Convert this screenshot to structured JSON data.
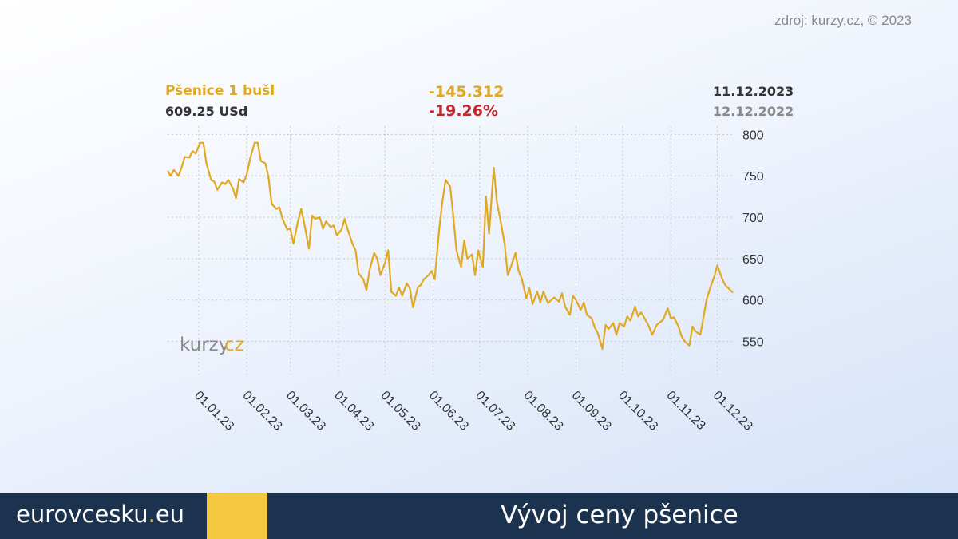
{
  "source_note": "zdroj: kurzy.cz, © 2023",
  "header": {
    "name": "Pšenice 1 bušl",
    "price": "609.25 USd",
    "change_abs": "-145.312",
    "change_pct": "-19.26%",
    "date_to": "11.12.2023",
    "date_from": "12.12.2022"
  },
  "watermark": {
    "part1": "kurzy",
    "part2": "cz"
  },
  "footer": {
    "site_name": "eurovcesku",
    "site_dot": ".",
    "site_tld": "eu",
    "title": "Vývoj ceny pšenice"
  },
  "colors": {
    "line": "#e0a823",
    "name": "#e0a823",
    "change_abs": "#e0a823",
    "change_pct": "#c0282a",
    "date_from": "#888888",
    "footer_bg": "#1c3350",
    "accent": "#f5c842"
  },
  "chart_data": {
    "type": "line",
    "title": "Pšenice 1 bušl",
    "xlabel": "",
    "ylabel": "",
    "x_range": [
      "2022-12-12",
      "2023-12-11"
    ],
    "ylim": [
      510,
      810
    ],
    "yticks": [
      550,
      600,
      650,
      700,
      750,
      800
    ],
    "ytick_labels": [
      "550",
      "600",
      "650",
      "700",
      "750",
      "800"
    ],
    "xticks": [
      "2023-01-01",
      "2023-02-01",
      "2023-03-01",
      "2023-04-01",
      "2023-05-01",
      "2023-06-01",
      "2023-07-01",
      "2023-08-01",
      "2023-09-01",
      "2023-10-01",
      "2023-11-01",
      "2023-12-01"
    ],
    "xtick_labels": [
      "01.01.23",
      "01.02.23",
      "01.03.23",
      "01.04.23",
      "01.05.23",
      "01.06.23",
      "01.07.23",
      "01.08.23",
      "01.09.23",
      "01.10.23",
      "01.11.23",
      "01.12.23"
    ],
    "grid": true,
    "y_axis_side": "right",
    "series": [
      {
        "name": "Pšenice 1 bušl",
        "points": [
          [
            "2022-12-12",
            756
          ],
          [
            "2022-12-14",
            750
          ],
          [
            "2022-12-16",
            757
          ],
          [
            "2022-12-19",
            750
          ],
          [
            "2022-12-21",
            760
          ],
          [
            "2022-12-23",
            773
          ],
          [
            "2022-12-26",
            772
          ],
          [
            "2022-12-28",
            780
          ],
          [
            "2022-12-30",
            777
          ],
          [
            "2023-01-02",
            790
          ],
          [
            "2023-01-04",
            790
          ],
          [
            "2023-01-06",
            765
          ],
          [
            "2023-01-09",
            745
          ],
          [
            "2023-01-11",
            743
          ],
          [
            "2023-01-13",
            733
          ],
          [
            "2023-01-16",
            742
          ],
          [
            "2023-01-18",
            740
          ],
          [
            "2023-01-20",
            745
          ],
          [
            "2023-01-23",
            735
          ],
          [
            "2023-01-25",
            723
          ],
          [
            "2023-01-27",
            746
          ],
          [
            "2023-01-30",
            742
          ],
          [
            "2023-02-01",
            752
          ],
          [
            "2023-02-03",
            770
          ],
          [
            "2023-02-06",
            790
          ],
          [
            "2023-02-08",
            790
          ],
          [
            "2023-02-10",
            768
          ],
          [
            "2023-02-13",
            765
          ],
          [
            "2023-02-15",
            748
          ],
          [
            "2023-02-17",
            716
          ],
          [
            "2023-02-20",
            710
          ],
          [
            "2023-02-22",
            712
          ],
          [
            "2023-02-24",
            698
          ],
          [
            "2023-02-27",
            685
          ],
          [
            "2023-03-01",
            686
          ],
          [
            "2023-03-03",
            668
          ],
          [
            "2023-03-06",
            696
          ],
          [
            "2023-03-08",
            710
          ],
          [
            "2023-03-10",
            692
          ],
          [
            "2023-03-13",
            662
          ],
          [
            "2023-03-15",
            702
          ],
          [
            "2023-03-17",
            698
          ],
          [
            "2023-03-20",
            700
          ],
          [
            "2023-03-22",
            686
          ],
          [
            "2023-03-24",
            695
          ],
          [
            "2023-03-27",
            688
          ],
          [
            "2023-03-29",
            690
          ],
          [
            "2023-03-31",
            678
          ],
          [
            "2023-04-03",
            685
          ],
          [
            "2023-04-05",
            698
          ],
          [
            "2023-04-07",
            685
          ],
          [
            "2023-04-10",
            668
          ],
          [
            "2023-04-12",
            660
          ],
          [
            "2023-04-14",
            632
          ],
          [
            "2023-04-17",
            625
          ],
          [
            "2023-04-19",
            612
          ],
          [
            "2023-04-21",
            636
          ],
          [
            "2023-04-24",
            657
          ],
          [
            "2023-04-26",
            650
          ],
          [
            "2023-04-28",
            630
          ],
          [
            "2023-05-01",
            645
          ],
          [
            "2023-05-03",
            660
          ],
          [
            "2023-05-05",
            610
          ],
          [
            "2023-05-08",
            605
          ],
          [
            "2023-05-10",
            615
          ],
          [
            "2023-05-12",
            605
          ],
          [
            "2023-05-15",
            620
          ],
          [
            "2023-05-17",
            614
          ],
          [
            "2023-05-19",
            591
          ],
          [
            "2023-05-22",
            615
          ],
          [
            "2023-05-24",
            618
          ],
          [
            "2023-05-26",
            625
          ],
          [
            "2023-05-29",
            630
          ],
          [
            "2023-05-31",
            635
          ],
          [
            "2023-06-02",
            625
          ],
          [
            "2023-06-05",
            688
          ],
          [
            "2023-06-07",
            720
          ],
          [
            "2023-06-09",
            745
          ],
          [
            "2023-06-12",
            737
          ],
          [
            "2023-06-14",
            700
          ],
          [
            "2023-06-16",
            660
          ],
          [
            "2023-06-19",
            640
          ],
          [
            "2023-06-21",
            672
          ],
          [
            "2023-06-23",
            650
          ],
          [
            "2023-06-26",
            655
          ],
          [
            "2023-06-28",
            630
          ],
          [
            "2023-06-30",
            660
          ],
          [
            "2023-07-03",
            640
          ],
          [
            "2023-07-05",
            725
          ],
          [
            "2023-07-07",
            680
          ],
          [
            "2023-07-10",
            760
          ],
          [
            "2023-07-12",
            718
          ],
          [
            "2023-07-14",
            700
          ],
          [
            "2023-07-17",
            668
          ],
          [
            "2023-07-19",
            630
          ],
          [
            "2023-07-21",
            640
          ],
          [
            "2023-07-24",
            657
          ],
          [
            "2023-07-26",
            635
          ],
          [
            "2023-07-28",
            626
          ],
          [
            "2023-07-31",
            602
          ],
          [
            "2023-08-02",
            614
          ],
          [
            "2023-08-04",
            595
          ],
          [
            "2023-08-07",
            610
          ],
          [
            "2023-08-09",
            597
          ],
          [
            "2023-08-11",
            610
          ],
          [
            "2023-08-14",
            596
          ],
          [
            "2023-08-16",
            600
          ],
          [
            "2023-08-18",
            603
          ],
          [
            "2023-08-21",
            598
          ],
          [
            "2023-08-23",
            608
          ],
          [
            "2023-08-25",
            592
          ],
          [
            "2023-08-28",
            582
          ],
          [
            "2023-08-30",
            605
          ],
          [
            "2023-09-01",
            600
          ],
          [
            "2023-09-04",
            588
          ],
          [
            "2023-09-06",
            597
          ],
          [
            "2023-09-08",
            582
          ],
          [
            "2023-09-11",
            578
          ],
          [
            "2023-09-13",
            567
          ],
          [
            "2023-09-15",
            560
          ],
          [
            "2023-09-18",
            541
          ],
          [
            "2023-09-20",
            570
          ],
          [
            "2023-09-22",
            565
          ],
          [
            "2023-09-25",
            572
          ],
          [
            "2023-09-27",
            558
          ],
          [
            "2023-09-29",
            572
          ],
          [
            "2023-10-02",
            568
          ],
          [
            "2023-10-04",
            580
          ],
          [
            "2023-10-06",
            575
          ],
          [
            "2023-10-09",
            592
          ],
          [
            "2023-10-11",
            580
          ],
          [
            "2023-10-13",
            585
          ],
          [
            "2023-10-16",
            575
          ],
          [
            "2023-10-18",
            568
          ],
          [
            "2023-10-20",
            558
          ],
          [
            "2023-10-23",
            570
          ],
          [
            "2023-10-25",
            573
          ],
          [
            "2023-10-27",
            576
          ],
          [
            "2023-10-30",
            590
          ],
          [
            "2023-11-01",
            578
          ],
          [
            "2023-11-03",
            579
          ],
          [
            "2023-11-06",
            568
          ],
          [
            "2023-11-08",
            556
          ],
          [
            "2023-11-10",
            550
          ],
          [
            "2023-11-13",
            545
          ],
          [
            "2023-11-15",
            568
          ],
          [
            "2023-11-17",
            562
          ],
          [
            "2023-11-20",
            558
          ],
          [
            "2023-11-22",
            578
          ],
          [
            "2023-11-24",
            600
          ],
          [
            "2023-11-27",
            618
          ],
          [
            "2023-11-29",
            628
          ],
          [
            "2023-12-01",
            642
          ],
          [
            "2023-12-04",
            626
          ],
          [
            "2023-12-06",
            618
          ],
          [
            "2023-12-11",
            609
          ]
        ]
      }
    ]
  }
}
